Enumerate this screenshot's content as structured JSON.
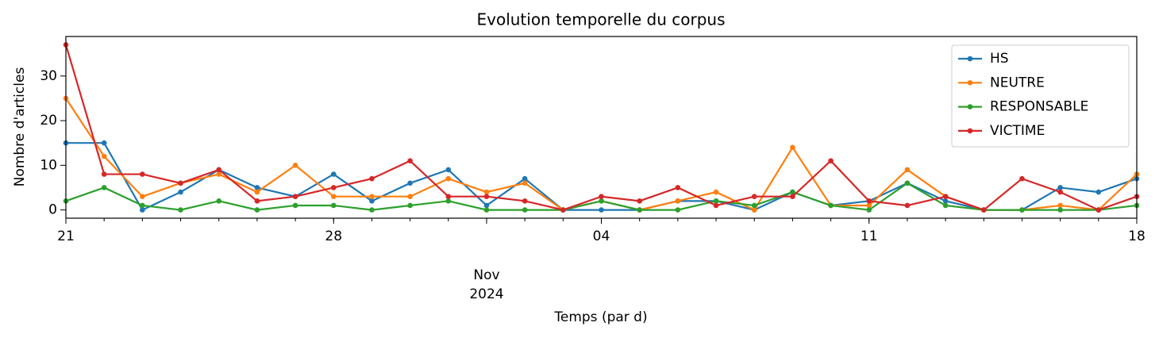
{
  "chart_data": {
    "type": "line",
    "title": "Evolution temporelle du corpus",
    "x_label": "Temps (par d)",
    "y_label": "Nombre d'articles",
    "x": [
      "2024-10-21",
      "2024-10-22",
      "2024-10-23",
      "2024-10-24",
      "2024-10-25",
      "2024-10-26",
      "2024-10-27",
      "2024-10-28",
      "2024-10-29",
      "2024-10-30",
      "2024-10-31",
      "2024-11-01",
      "2024-11-02",
      "2024-11-03",
      "2024-11-04",
      "2024-11-05",
      "2024-11-06",
      "2024-11-07",
      "2024-11-08",
      "2024-11-09",
      "2024-11-10",
      "2024-11-11",
      "2024-11-12",
      "2024-11-13",
      "2024-11-14",
      "2024-11-15",
      "2024-11-16",
      "2024-11-17",
      "2024-11-18"
    ],
    "series": [
      {
        "name": "HS",
        "color": "#1f77b4",
        "values": [
          15,
          15,
          0,
          4,
          9,
          5,
          3,
          8,
          2,
          6,
          9,
          1,
          7,
          0,
          0,
          0,
          2,
          2,
          0,
          4,
          1,
          2,
          6,
          2,
          0,
          0,
          5,
          4,
          7
        ]
      },
      {
        "name": "NEUTRE",
        "color": "#ff7f0e",
        "values": [
          25,
          12,
          3,
          6,
          8,
          4,
          10,
          3,
          3,
          3,
          7,
          4,
          6,
          0,
          2,
          0,
          2,
          4,
          0,
          14,
          1,
          1,
          9,
          3,
          0,
          0,
          1,
          0,
          8
        ]
      },
      {
        "name": "RESPONSABLE",
        "color": "#2ca02c",
        "values": [
          2,
          5,
          1,
          0,
          2,
          0,
          1,
          1,
          0,
          1,
          2,
          0,
          0,
          0,
          2,
          0,
          0,
          2,
          1,
          4,
          1,
          0,
          6,
          1,
          0,
          0,
          0,
          0,
          1
        ]
      },
      {
        "name": "VICTIME",
        "color": "#d62728",
        "values": [
          37,
          8,
          8,
          6,
          9,
          2,
          3,
          5,
          7,
          11,
          3,
          3,
          2,
          0,
          3,
          2,
          5,
          1,
          3,
          3,
          11,
          2,
          1,
          3,
          0,
          7,
          4,
          0,
          3
        ]
      }
    ],
    "xlim": [
      "2024-10-21",
      "2024-11-18"
    ],
    "xticks": [
      {
        "value": "2024-10-21",
        "label": "21"
      },
      {
        "value": "2024-10-28",
        "label": "28"
      },
      {
        "value": "2024-11-01",
        "label": "Nov\n2024"
      },
      {
        "value": "2024-11-04",
        "label": "04"
      },
      {
        "value": "2024-11-11",
        "label": "11"
      },
      {
        "value": "2024-11-18",
        "label": "18"
      }
    ],
    "ylim": [
      -1.85,
      38.85
    ],
    "yticks": [
      0,
      10,
      20,
      30
    ],
    "legend": "upper right",
    "grid": false
  }
}
